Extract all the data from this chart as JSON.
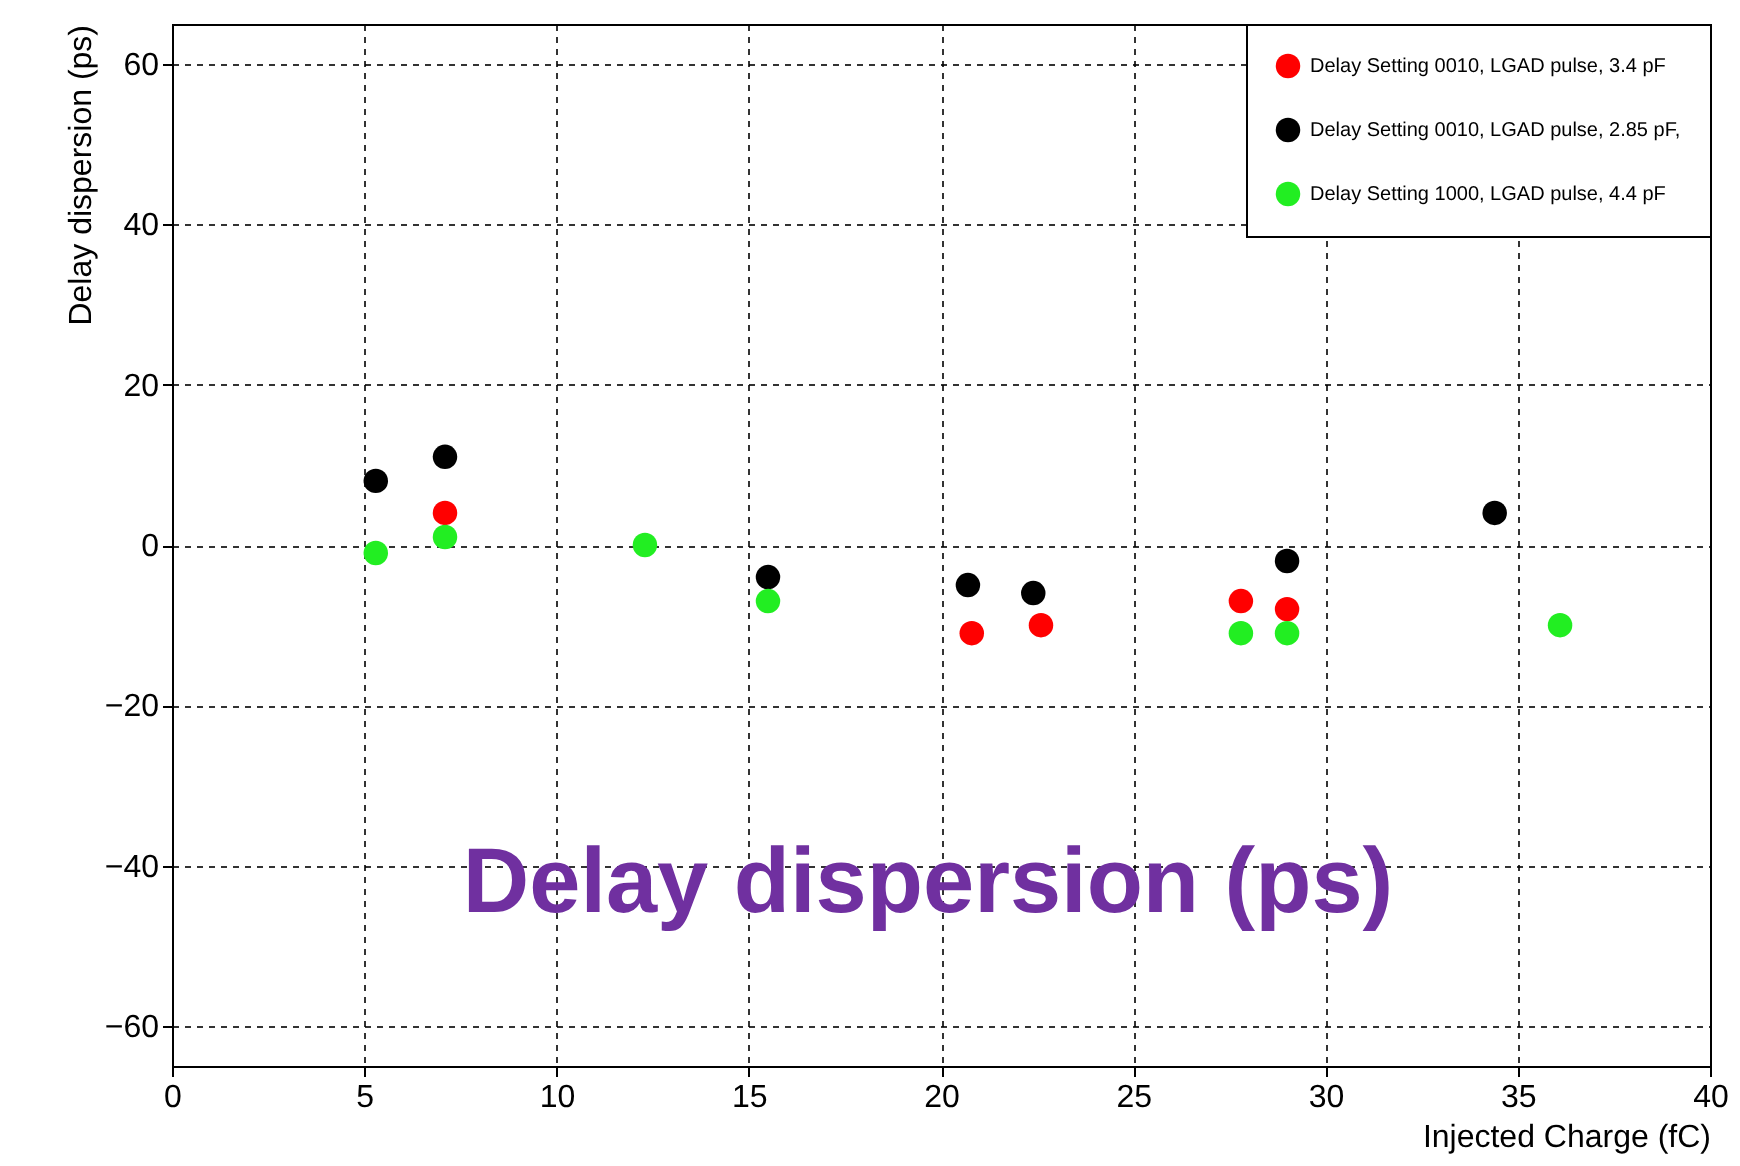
{
  "chart_data": {
    "type": "scatter",
    "xlabel": "Injected Charge (fC)",
    "ylabel": "Delay dispersion (ps)",
    "annotations": [
      "Delay dispersion (ps)"
    ],
    "xlim": [
      0,
      40
    ],
    "xticks": [
      0,
      5,
      10,
      15,
      20,
      25,
      30,
      35,
      40
    ],
    "ylim": [
      -65,
      65
    ],
    "yticks": [
      -60,
      -40,
      -20,
      0,
      20,
      40,
      60
    ],
    "grid": true,
    "legend": "top right",
    "marker": "circle",
    "series": [
      {
        "name": "Delay Setting 0010, LGAD pulse, 3.4 pF",
        "color": "#ff0000",
        "x": [
          7.1,
          20.8,
          22.6,
          27.8,
          29.0
        ],
        "values": [
          4,
          -11,
          -10,
          -7,
          -8
        ]
      },
      {
        "name": "Delay Setting 0010, LGAD pulse, 2.85 pF,",
        "color": "#000000",
        "x": [
          5.3,
          7.1,
          15.5,
          20.7,
          22.4,
          29.0,
          34.4
        ],
        "values": [
          8,
          11,
          -4,
          -5,
          -6,
          -2,
          4
        ]
      },
      {
        "name": "Delay Setting 1000, LGAD pulse, 4.4 pF",
        "color": "#22ee22",
        "x": [
          5.3,
          7.1,
          12.3,
          15.5,
          27.8,
          29.0,
          36.1
        ],
        "values": [
          -1,
          1,
          0,
          -7,
          -11,
          -11,
          -10
        ]
      }
    ]
  }
}
